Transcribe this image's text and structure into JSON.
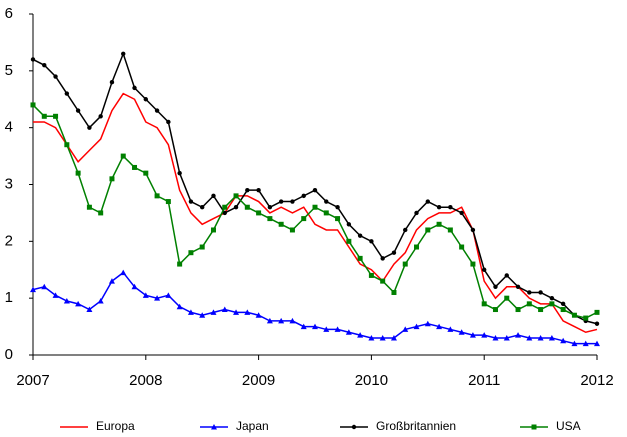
{
  "chart_data": {
    "type": "line",
    "x": [
      2007.0,
      2007.1,
      2007.2,
      2007.3,
      2007.4,
      2007.5,
      2007.6,
      2007.7,
      2007.8,
      2007.9,
      2008.0,
      2008.1,
      2008.2,
      2008.3,
      2008.4,
      2008.5,
      2008.6,
      2008.7,
      2008.8,
      2008.9,
      2009.0,
      2009.1,
      2009.2,
      2009.3,
      2009.4,
      2009.5,
      2009.6,
      2009.7,
      2009.8,
      2009.9,
      2010.0,
      2010.1,
      2010.2,
      2010.3,
      2010.4,
      2010.5,
      2010.6,
      2010.7,
      2010.8,
      2010.9,
      2011.0,
      2011.1,
      2011.2,
      2011.3,
      2011.4,
      2011.5,
      2011.6,
      2011.7,
      2011.8,
      2011.9,
      2012.0
    ],
    "series": [
      {
        "name": "Europa",
        "color": "#ff0000",
        "marker": "none",
        "values": [
          4.1,
          4.1,
          4.0,
          3.7,
          3.4,
          3.6,
          3.8,
          4.3,
          4.6,
          4.5,
          4.1,
          4.0,
          3.7,
          2.9,
          2.5,
          2.3,
          2.4,
          2.5,
          2.8,
          2.8,
          2.7,
          2.5,
          2.6,
          2.5,
          2.6,
          2.3,
          2.2,
          2.2,
          1.9,
          1.6,
          1.5,
          1.3,
          1.6,
          1.8,
          2.2,
          2.4,
          2.5,
          2.5,
          2.6,
          2.2,
          1.3,
          1.0,
          1.2,
          1.2,
          1.0,
          0.9,
          0.9,
          0.6,
          0.5,
          0.4,
          0.45
        ]
      },
      {
        "name": "Japan",
        "color": "#0000ff",
        "marker": "triangle",
        "values": [
          1.15,
          1.2,
          1.05,
          0.95,
          0.9,
          0.8,
          0.95,
          1.3,
          1.45,
          1.2,
          1.05,
          1.0,
          1.05,
          0.85,
          0.75,
          0.7,
          0.75,
          0.8,
          0.75,
          0.75,
          0.7,
          0.6,
          0.6,
          0.6,
          0.5,
          0.5,
          0.45,
          0.45,
          0.4,
          0.35,
          0.3,
          0.3,
          0.3,
          0.45,
          0.5,
          0.55,
          0.5,
          0.45,
          0.4,
          0.35,
          0.35,
          0.3,
          0.3,
          0.35,
          0.3,
          0.3,
          0.3,
          0.25,
          0.2,
          0.2,
          0.2
        ]
      },
      {
        "name": "Großbritannien",
        "color": "#000000",
        "marker": "circle",
        "values": [
          5.2,
          5.1,
          4.9,
          4.6,
          4.3,
          4.0,
          4.2,
          4.8,
          5.3,
          4.7,
          4.5,
          4.3,
          4.1,
          3.2,
          2.7,
          2.6,
          2.8,
          2.5,
          2.6,
          2.9,
          2.9,
          2.6,
          2.7,
          2.7,
          2.8,
          2.9,
          2.7,
          2.6,
          2.3,
          2.1,
          2.0,
          1.7,
          1.8,
          2.2,
          2.5,
          2.7,
          2.6,
          2.6,
          2.5,
          2.2,
          1.5,
          1.2,
          1.4,
          1.2,
          1.1,
          1.1,
          1.0,
          0.9,
          0.7,
          0.6,
          0.55
        ]
      },
      {
        "name": "USA",
        "color": "#008000",
        "marker": "square",
        "values": [
          4.4,
          4.2,
          4.2,
          3.7,
          3.2,
          2.6,
          2.5,
          3.1,
          3.5,
          3.3,
          3.2,
          2.8,
          2.7,
          1.6,
          1.8,
          1.9,
          2.2,
          2.6,
          2.8,
          2.6,
          2.5,
          2.4,
          2.3,
          2.2,
          2.4,
          2.6,
          2.5,
          2.4,
          2.0,
          1.7,
          1.4,
          1.3,
          1.1,
          1.6,
          1.9,
          2.2,
          2.3,
          2.2,
          1.9,
          1.6,
          0.9,
          0.8,
          1.0,
          0.8,
          0.9,
          0.8,
          0.9,
          0.8,
          0.7,
          0.65,
          0.75
        ]
      }
    ],
    "xlim": [
      2007,
      2012
    ],
    "xticks": [
      2007,
      2008,
      2009,
      2010,
      2011,
      2012
    ],
    "ylim": [
      0,
      6
    ],
    "yticks": [
      0,
      1,
      2,
      3,
      4,
      5,
      6
    ],
    "legend": "bottom"
  }
}
